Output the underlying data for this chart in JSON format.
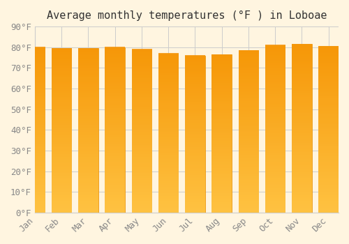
{
  "title": "Average monthly temperatures (°F ) in Loboae",
  "months": [
    "Jan",
    "Feb",
    "Mar",
    "Apr",
    "May",
    "Jun",
    "Jul",
    "Aug",
    "Sep",
    "Oct",
    "Nov",
    "Dec"
  ],
  "values": [
    80,
    79.5,
    79.5,
    80,
    79,
    77,
    76,
    76.5,
    78.5,
    81,
    81.5,
    80.5
  ],
  "bar_color_main": "#FFA500",
  "bar_color_gradient_top": "#FFC04C",
  "bar_color_gradient_bottom": "#F5950A",
  "background_color": "#FFF5E0",
  "grid_color": "#CCCCCC",
  "text_color": "#888888",
  "ylim": [
    0,
    90
  ],
  "yticks": [
    0,
    10,
    20,
    30,
    40,
    50,
    60,
    70,
    80,
    90
  ],
  "ytick_labels": [
    "0°F",
    "10°F",
    "20°F",
    "30°F",
    "40°F",
    "50°F",
    "60°F",
    "70°F",
    "80°F",
    "90°F"
  ],
  "title_fontsize": 11,
  "tick_fontsize": 9,
  "bar_edge_color": "#E8900A",
  "title_font": "monospace"
}
